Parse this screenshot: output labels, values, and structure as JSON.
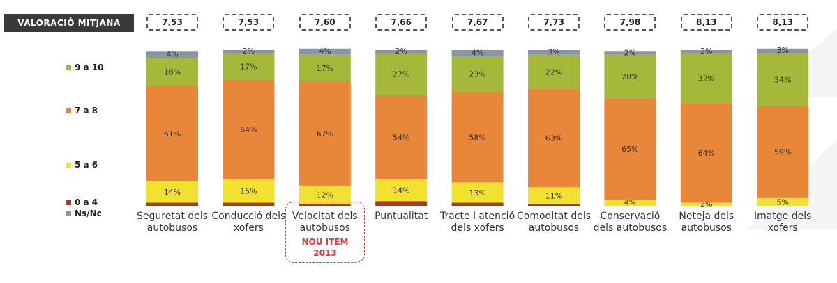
{
  "header": {
    "label": "VALORACIÓ MITJANA"
  },
  "averages": [
    "7,53",
    "7,53",
    "7,60",
    "7,66",
    "7,67",
    "7,73",
    "7,98",
    "8,13",
    "8,13"
  ],
  "legend": [
    {
      "label": "9 a 10",
      "color": "#a6b83a"
    },
    {
      "label": "7 a 8",
      "color": "#e8873a"
    },
    {
      "label": "5 a 6",
      "color": "#f2e12e"
    },
    {
      "label": "0 a 4",
      "color": "#a83a2a"
    },
    {
      "label": "Ns/Nc",
      "color": "#8a95a5"
    }
  ],
  "new_item": {
    "line1": "NOU ITEM",
    "line2": "2013"
  },
  "chart_data": {
    "type": "bar",
    "stacked": true,
    "categories": [
      "Seguretat dels autobusos",
      "Conducció dels xofers",
      "Velocitat dels autobusos",
      "Puntualitat",
      "Tracte i atenció dels xofers",
      "Comoditat dels autobusos",
      "Conservació dels autobusos",
      "Neteja dels autobusos",
      "Imatge dels xofers"
    ],
    "series": [
      {
        "name": "0 a 4",
        "values": [
          2,
          2,
          1,
          3,
          2,
          1,
          0,
          0,
          0
        ]
      },
      {
        "name": "5 a 6",
        "values": [
          14,
          15,
          12,
          14,
          13,
          11,
          4,
          2,
          5
        ]
      },
      {
        "name": "7 a 8",
        "values": [
          61,
          64,
          67,
          54,
          58,
          63,
          65,
          64,
          59
        ]
      },
      {
        "name": "9 a 10",
        "values": [
          18,
          17,
          17,
          27,
          23,
          22,
          28,
          32,
          34
        ]
      },
      {
        "name": "Ns/Nc",
        "values": [
          4,
          2,
          4,
          2,
          4,
          3,
          2,
          2,
          3
        ]
      }
    ],
    "labels": [
      [
        null,
        "14%",
        "61%",
        "18%",
        "4%"
      ],
      [
        null,
        "15%",
        "64%",
        "17%",
        "2%"
      ],
      [
        null,
        "12%",
        "67%",
        "17%",
        "4%"
      ],
      [
        null,
        "14%",
        "54%",
        "27%",
        "2%"
      ],
      [
        null,
        "13%",
        "58%",
        "23%",
        "4%"
      ],
      [
        null,
        "11%",
        "63%",
        "22%",
        "3%"
      ],
      [
        null,
        "4%",
        "65%",
        "28%",
        "2%"
      ],
      [
        null,
        "2%",
        "64%",
        "32%",
        "2%"
      ],
      [
        null,
        "5%",
        "59%",
        "34%",
        "3%"
      ]
    ],
    "colors": [
      "#a83a2a",
      "#f2e12e",
      "#e8873a",
      "#a6b83a",
      "#8a95a5"
    ],
    "ylim": [
      0,
      100
    ]
  }
}
